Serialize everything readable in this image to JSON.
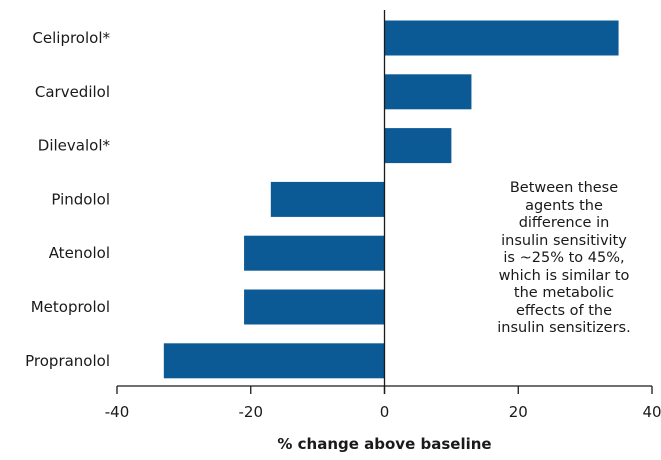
{
  "chart_data": {
    "type": "bar",
    "orientation": "horizontal",
    "categories": [
      "Celiprolol*",
      "Carvedilol",
      "Dilevalol*",
      "Pindolol",
      "Atenolol",
      "Metoprolol",
      "Propranolol"
    ],
    "values": [
      35,
      13,
      10,
      -17,
      -21,
      -21,
      -33
    ],
    "xlabel": "% change above baseline",
    "ylabel": "",
    "xlim": [
      -40,
      40
    ],
    "xticks": [
      -40,
      -20,
      0,
      20,
      40
    ],
    "xtick_labels": [
      "-40",
      "-20",
      "0",
      "20",
      "40"
    ],
    "bar_color": "#0b5a95",
    "grid": false,
    "annotation": "Between these\nagents the\ndifference in\ninsulin sensitivity\nis ~25% to 45%,\nwhich is similar to\nthe metabolic\neffects of the\ninsulin sensitizers."
  }
}
